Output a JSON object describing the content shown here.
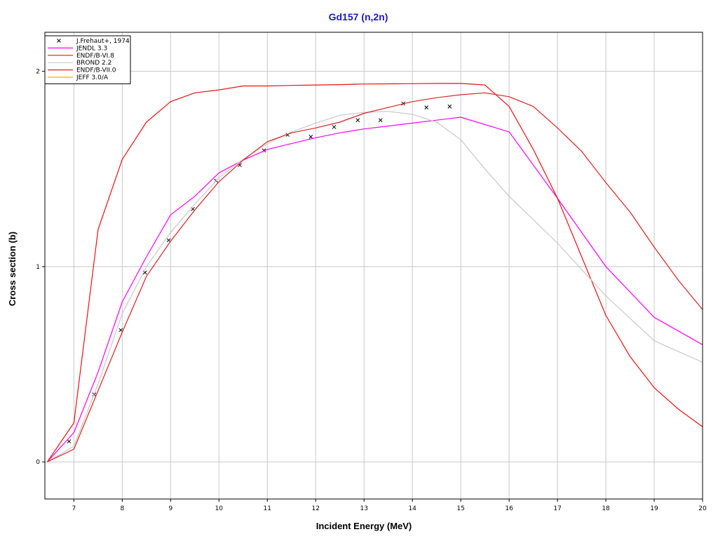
{
  "chart_data": {
    "type": "line",
    "title": "Gd157 (n,2n)",
    "xlabel": "Incident Energy (MeV)",
    "ylabel": "Cross section (b)",
    "xlim": [
      6.4,
      20
    ],
    "ylim": [
      -0.19,
      2.2
    ],
    "x_ticks": [
      7,
      8,
      9,
      10,
      11,
      12,
      13,
      14,
      15,
      16,
      17,
      18,
      19,
      20
    ],
    "y_ticks": [
      0,
      1,
      2
    ],
    "grid": true,
    "legend_position": "top-left",
    "series": [
      {
        "name": "J.Frehaut+, 1974",
        "kind": "scatter",
        "marker": "x",
        "color": "#000000",
        "x": [
          6.9,
          7.42,
          7.97,
          8.47,
          8.96,
          9.46,
          9.94,
          10.43,
          10.93,
          11.42,
          11.9,
          12.38,
          12.87,
          13.34,
          13.81,
          14.29,
          14.77
        ],
        "y": [
          0.105,
          0.345,
          0.675,
          0.97,
          1.135,
          1.295,
          1.44,
          1.52,
          1.595,
          1.675,
          1.665,
          1.715,
          1.75,
          1.75,
          1.835,
          1.815,
          1.82
        ]
      },
      {
        "name": "JENDL 3.3",
        "kind": "line",
        "color": "#ff00ff",
        "x": [
          6.45,
          7,
          7.5,
          8,
          8.5,
          9,
          9.5,
          10,
          10.5,
          11,
          11.5,
          12,
          12.5,
          13,
          13.5,
          14,
          14.5,
          15,
          16,
          17,
          18,
          19,
          20
        ],
        "y": [
          0,
          0.15,
          0.46,
          0.82,
          1.05,
          1.265,
          1.36,
          1.48,
          1.545,
          1.6,
          1.63,
          1.66,
          1.685,
          1.705,
          1.72,
          1.735,
          1.75,
          1.765,
          1.69,
          1.35,
          1.0,
          0.74,
          0.6
        ]
      },
      {
        "name": "ENDF/B-VI.8",
        "kind": "line",
        "color": "#ee1111",
        "x": [
          6.45,
          7,
          7.5,
          8,
          8.5,
          9,
          9.5,
          10,
          10.5,
          11,
          11.5,
          12,
          12.5,
          13,
          13.5,
          14,
          14.5,
          15,
          15.5,
          16,
          16.5,
          17,
          17.5,
          18,
          18.5,
          19,
          19.5,
          20
        ],
        "y": [
          0,
          0.2,
          1.19,
          1.55,
          1.74,
          1.845,
          1.89,
          1.905,
          1.925,
          1.925,
          1.928,
          1.93,
          1.932,
          1.935,
          1.936,
          1.937,
          1.938,
          1.938,
          1.93,
          1.82,
          1.6,
          1.35,
          1.05,
          0.75,
          0.54,
          0.38,
          0.27,
          0.18
        ]
      },
      {
        "name": "BROND 2.2",
        "kind": "line",
        "color": "#c8c8c8",
        "x": [
          6.45,
          7,
          7.5,
          8,
          8.5,
          9,
          9.5,
          10,
          10.5,
          11,
          11.5,
          12,
          12.5,
          13,
          13.5,
          14,
          14.5,
          15,
          15.5,
          16,
          16.5,
          17,
          18,
          19,
          20
        ],
        "y": [
          0,
          0.08,
          0.4,
          0.76,
          1.0,
          1.175,
          1.32,
          1.455,
          1.55,
          1.63,
          1.69,
          1.735,
          1.775,
          1.79,
          1.795,
          1.78,
          1.74,
          1.65,
          1.5,
          1.36,
          1.24,
          1.12,
          0.85,
          0.62,
          0.51
        ]
      },
      {
        "name": "ENDF/B-VII.0",
        "kind": "line",
        "color": "#dd2222",
        "x": [
          6.45,
          7,
          7.5,
          8,
          8.5,
          9,
          9.5,
          10,
          10.5,
          11,
          11.5,
          12,
          12.5,
          13,
          13.5,
          14,
          14.5,
          15,
          15.5,
          16,
          16.5,
          17,
          17.5,
          18,
          18.5,
          19,
          19.5,
          20
        ],
        "y": [
          0,
          0.065,
          0.365,
          0.665,
          0.95,
          1.13,
          1.29,
          1.435,
          1.545,
          1.64,
          1.685,
          1.71,
          1.74,
          1.785,
          1.815,
          1.845,
          1.865,
          1.88,
          1.89,
          1.87,
          1.82,
          1.71,
          1.59,
          1.43,
          1.28,
          1.1,
          0.93,
          0.78
        ]
      },
      {
        "name": "JEFF 3.0/A",
        "kind": "line",
        "color": "#ffaa00",
        "x": [],
        "y": []
      }
    ]
  }
}
